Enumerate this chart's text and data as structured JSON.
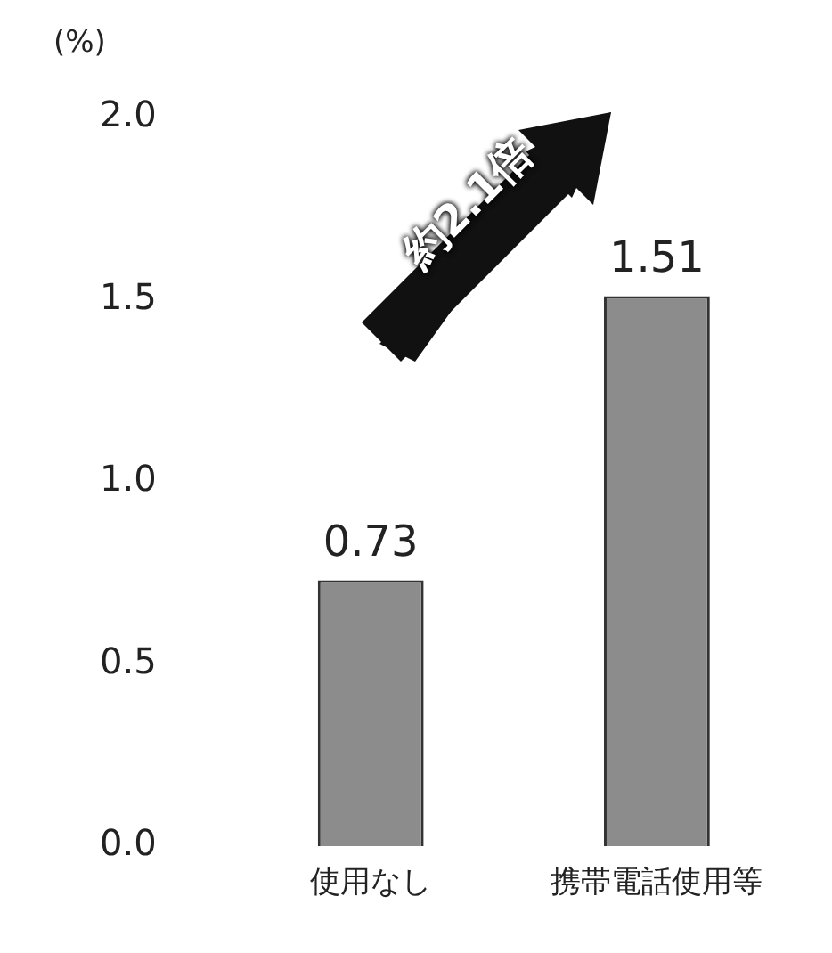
{
  "chart_data": {
    "type": "bar",
    "ylabel": "(%)",
    "categories": [
      "使用なし",
      "携帯電話使用等"
    ],
    "values": [
      0.73,
      1.51
    ],
    "color": "#8c8c8c",
    "ylim": [
      0,
      2.0
    ],
    "yticks": [
      {
        "value": 0,
        "label": "0.0"
      },
      {
        "value": 0.5,
        "label": "0.5"
      },
      {
        "value": 1,
        "label": "1.0"
      },
      {
        "value": 1.5,
        "label": "1.5"
      },
      {
        "value": 2,
        "label": "2.0"
      }
    ],
    "data_labels": true,
    "grid": false,
    "legend": false,
    "annotations": [
      "約2.1倍"
    ]
  }
}
